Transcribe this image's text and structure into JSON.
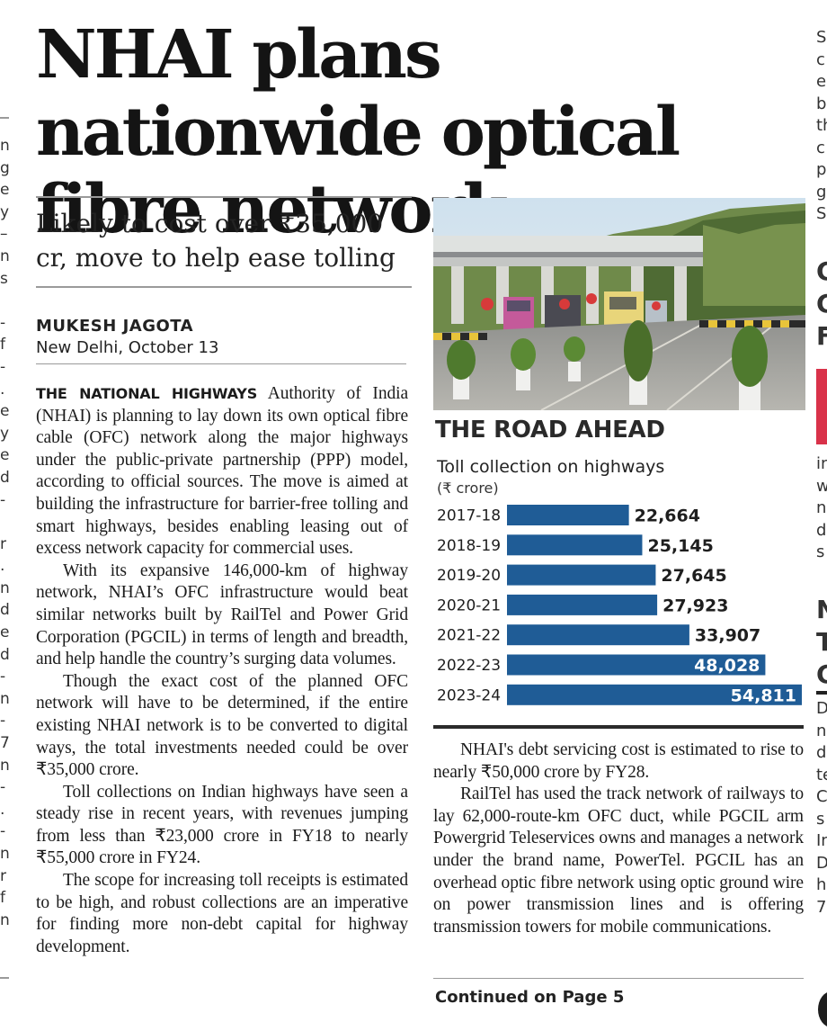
{
  "headline": "NHAI plans nationwide optical fibre network",
  "deck": "Likely to cost over ₹35,000 cr, move to help ease tolling",
  "byline": {
    "name": "MUKESH JAGOTA",
    "place_date": "New Delhi, October 13"
  },
  "article": {
    "lead_caps": "THE NATIONAL HIGHWAYS",
    "p1_rest": " Authority of India (NHAI) is planning to lay down its own optical fibre cable (OFC) network along the major highways under the public-private partnership (PPP) model, according to official sources. The move is aimed at building the infrastructure for barrier-free tolling and smart highways, besides enabling leasing out of excess network capacity for commercial uses.",
    "p2": "With its expansive 146,000-km of highway network, NHAI’s OFC infrastructure would beat similar networks built by RailTel and Power Grid Corporation (PGCIL) in terms of length and breadth, and help handle the country’s surging data volumes.",
    "p3": "Though the exact cost of the planned OFC network will have to be determined, if the entire existing NHAI network is to be converted to digital ways, the total investments needed could be over ₹35,000 crore.",
    "p4": "Toll collections on Indian highways have seen a steady rise in recent years, with revenues jumping from less than ₹23,000 crore in FY18 to nearly ₹55,000 crore in FY24.",
    "p5": "The scope for increasing toll receipts is estimated to be high, and robust collections are an imperative for finding more non-debt capital for highway development.",
    "p6": "NHAI's debt servicing cost is estimated to rise to nearly ₹50,000 crore by FY28.",
    "p7": "RailTel has used the track network of railways to lay 62,000-route-km OFC duct, while PGCIL arm Powergrid Teleservices owns and manages a network under the brand name, PowerTel. PGCIL has an overhead optic fibre network using optic ground wire on power transmission lines and is offering transmission towers for mobile communications.",
    "continued": "Continued on Page 5"
  },
  "chart_data": {
    "type": "bar",
    "title": "THE ROAD AHEAD",
    "subtitle": "Toll collection on highways",
    "unit": "(₹ crore)",
    "categories": [
      "2017-18",
      "2018-19",
      "2019-20",
      "2020-21",
      "2021-22",
      "2022-23",
      "2023-24"
    ],
    "values": [
      22664,
      25145,
      27645,
      27923,
      33907,
      48028,
      54811
    ],
    "labels": [
      "22,664",
      "25,145",
      "27,645",
      "27,923",
      "33,907",
      "48,028",
      "54,811"
    ],
    "orientation": "horizontal",
    "bar_color": "#1f5c96",
    "xlim": [
      0,
      54811
    ]
  },
  "side_fragments": {
    "left": [
      "n",
      "g",
      "e",
      "y",
      "–",
      "n",
      "s",
      "",
      "-",
      "f",
      "-",
      ".",
      "e",
      "y",
      "e",
      "d",
      "-",
      "",
      "r",
      ".",
      "n",
      "d",
      "e",
      "d",
      "-",
      "n",
      "-",
      "7",
      "n",
      "-",
      ".",
      "-",
      "n",
      "r",
      "f",
      "n"
    ],
    "right_top": [
      "S",
      "c",
      "e",
      "b",
      "th",
      "c",
      "p",
      "g",
      "S"
    ],
    "right_head1": [
      "C",
      "C",
      "F"
    ],
    "right_mid": [
      "in",
      "w",
      "n",
      "d",
      "s"
    ],
    "right_head2": [
      "N",
      "T",
      "C"
    ],
    "right_bottom": [
      "D",
      "n",
      "d",
      "te",
      "C",
      "s",
      "In",
      "D",
      "h",
      "7"
    ]
  }
}
